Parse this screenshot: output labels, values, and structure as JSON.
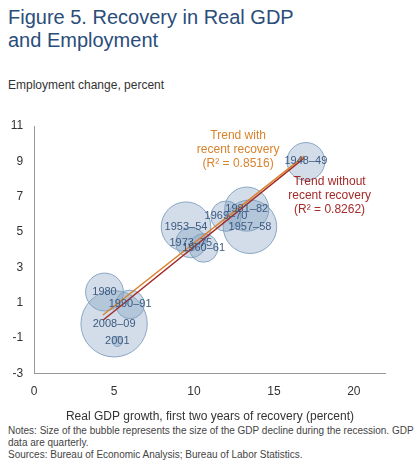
{
  "chart_data": {
    "type": "bubble",
    "title": "Figure 5. Recovery in Real GDP and Employment",
    "y_label": "Employment change, percent",
    "x_label": "Real GDP growth, first two years of recovery (percent)",
    "notes": "Notes: Size of the bubble represents the size of the GDP decline during the recession. GDP data are quarterly.",
    "sources": "Sources: Bureau of Economic Analysis; Bureau of Labor Statistics.",
    "xlim": [
      0,
      22
    ],
    "xticks": [
      0,
      5,
      10,
      15,
      20
    ],
    "ylim": [
      -3,
      11
    ],
    "yticks": [
      -3,
      -1,
      1,
      3,
      5,
      7,
      9,
      11
    ],
    "grid": false,
    "color": "#7f9fbf",
    "points": [
      {
        "label": "1948–49",
        "x": 17.0,
        "y": 9.0,
        "gdp_decline": 1.4
      },
      {
        "label": "1981–82",
        "x": 13.3,
        "y": 6.3,
        "gdp_decline": 1.9
      },
      {
        "label": "1969–70",
        "x": 12.0,
        "y": 5.9,
        "gdp_decline": 0.9
      },
      {
        "label": "1957–58",
        "x": 13.5,
        "y": 5.3,
        "gdp_decline": 2.8
      },
      {
        "label": "1953–54",
        "x": 9.5,
        "y": 5.3,
        "gdp_decline": 2.4
      },
      {
        "label": "1973–75",
        "x": 9.8,
        "y": 4.4,
        "gdp_decline": 0.9
      },
      {
        "label": "1960–61",
        "x": 10.6,
        "y": 4.1,
        "gdp_decline": 0.8
      },
      {
        "label": "1980",
        "x": 4.4,
        "y": 1.6,
        "gdp_decline": 1.4
      },
      {
        "label": "1990–91",
        "x": 6.0,
        "y": 0.9,
        "gdp_decline": 0.8
      },
      {
        "label": "2008–09",
        "x": 5.0,
        "y": -0.2,
        "gdp_decline": 4.3
      },
      {
        "label": "2001",
        "x": 5.2,
        "y": -1.2,
        "gdp_decline": 0.1
      }
    ],
    "trend_lines": [
      {
        "name": "Trend with recent recovery (R² = 0.8516)",
        "type": "line",
        "color": "#d9822b",
        "x": [
          4.3,
          16.9
        ],
        "values": [
          0.3,
          9.3
        ]
      },
      {
        "name": "Trend without recent recovery (R² = 0.8262)",
        "type": "line",
        "color": "#a52a2a",
        "x": [
          4.3,
          16.9
        ],
        "values": [
          0.0,
          9.2
        ]
      }
    ]
  }
}
